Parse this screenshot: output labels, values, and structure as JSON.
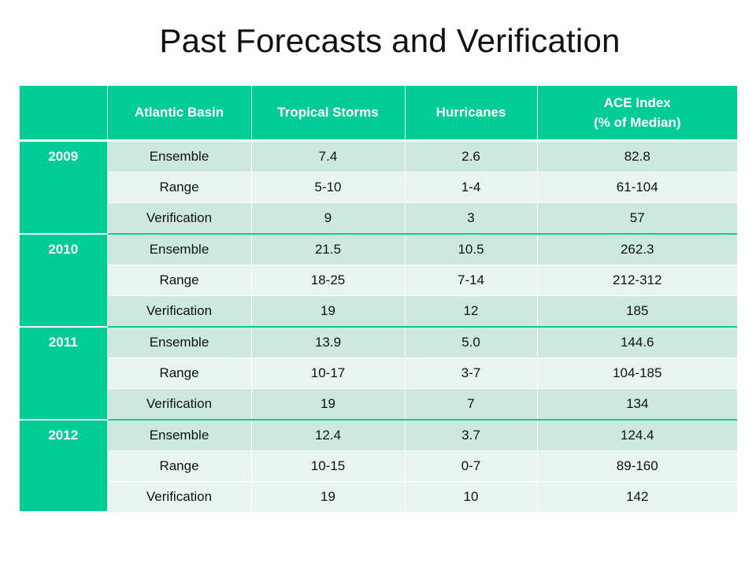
{
  "title": "Past Forecasts and Verification",
  "header": {
    "blank": "",
    "basin": "Atlantic Basin",
    "storms": "Tropical Storms",
    "hurricanes": "Hurricanes",
    "ace_line1": "ACE Index",
    "ace_line2": "(% of Median)"
  },
  "years": [
    {
      "year": "2009",
      "rows": [
        {
          "label": "Ensemble",
          "storms": "7.4",
          "hurricanes": "2.6",
          "ace": "82.8"
        },
        {
          "label": "Range",
          "storms": "5-10",
          "hurricanes": "1-4",
          "ace": "61-104"
        },
        {
          "label": "Verification",
          "storms": "9",
          "hurricanes": "3",
          "ace": "57"
        }
      ]
    },
    {
      "year": "2010",
      "rows": [
        {
          "label": "Ensemble",
          "storms": "21.5",
          "hurricanes": "10.5",
          "ace": "262.3"
        },
        {
          "label": "Range",
          "storms": "18-25",
          "hurricanes": "7-14",
          "ace": "212-312"
        },
        {
          "label": "Verification",
          "storms": "19",
          "hurricanes": "12",
          "ace": "185"
        }
      ]
    },
    {
      "year": "2011",
      "rows": [
        {
          "label": "Ensemble",
          "storms": "13.9",
          "hurricanes": "5.0",
          "ace": "144.6"
        },
        {
          "label": "Range",
          "storms": "10-17",
          "hurricanes": "3-7",
          "ace": "104-185"
        },
        {
          "label": "Verification",
          "storms": "19",
          "hurricanes": "7",
          "ace": "134"
        }
      ]
    },
    {
      "year": "2012",
      "rows": [
        {
          "label": "Ensemble",
          "storms": "12.4",
          "hurricanes": "3.7",
          "ace": "124.4"
        },
        {
          "label": "Range",
          "storms": "10-15",
          "hurricanes": "0-7",
          "ace": "89-160"
        },
        {
          "label": "Verification",
          "storms": "19",
          "hurricanes": "10",
          "ace": "142"
        }
      ]
    }
  ],
  "colors": {
    "header_bg": "#00CC96",
    "row_dark": "#cde9df",
    "row_light": "#e7f4ef",
    "text": "#111111"
  }
}
